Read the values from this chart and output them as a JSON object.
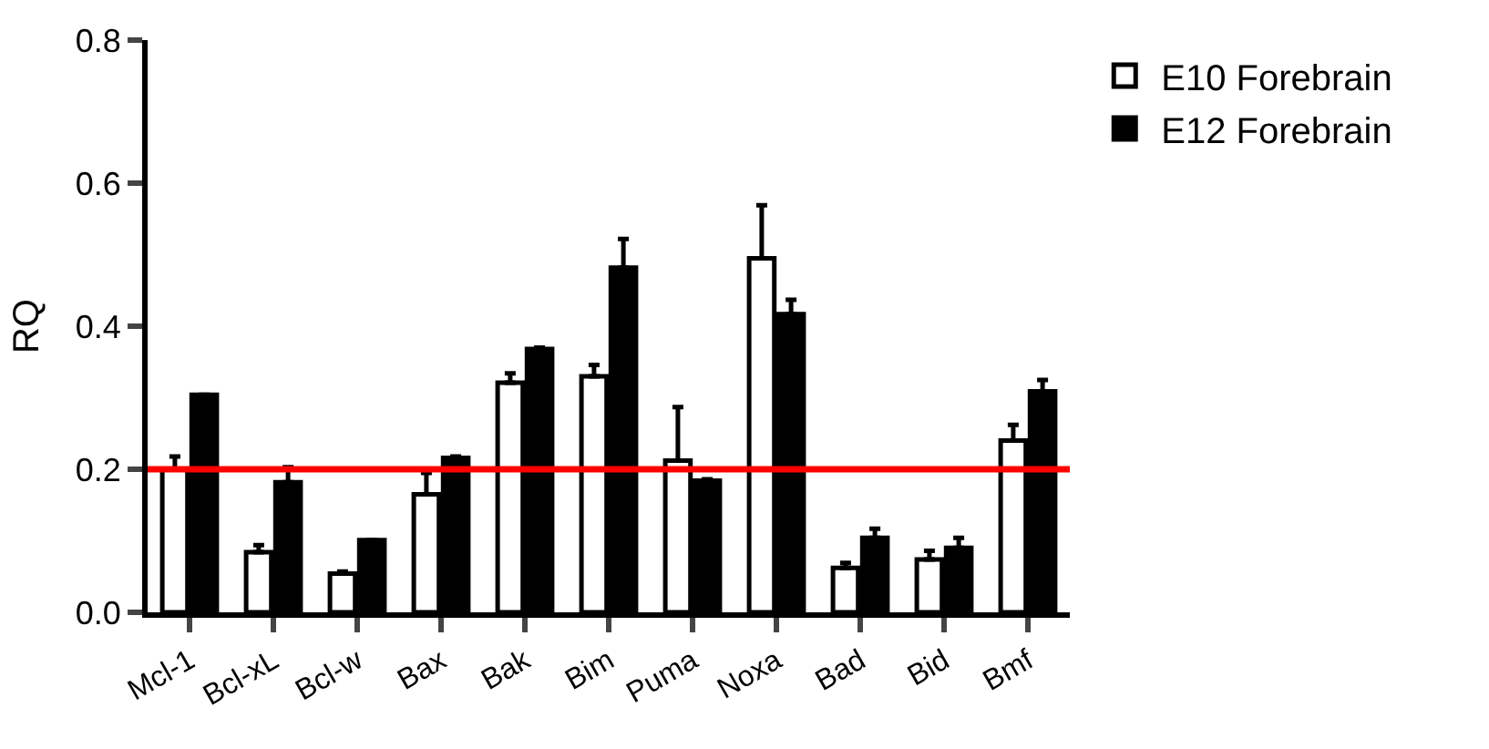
{
  "chart_data": {
    "type": "bar",
    "ylabel": "RQ",
    "categories": [
      "Mcl-1",
      "Bcl-xL",
      "Bcl-w",
      "Bax",
      "Bak",
      "Bim",
      "Puma",
      "Noxa",
      "Bad",
      "Bid",
      "Bmf"
    ],
    "series": [
      {
        "name": "E10 Forebrain",
        "color": "#ffffff",
        "values": [
          0.2,
          0.084,
          0.054,
          0.165,
          0.321,
          0.33,
          0.212,
          0.495,
          0.062,
          0.074,
          0.24
        ],
        "errors": [
          [
            0.2,
            0.218
          ],
          [
            0.084,
            0.094
          ],
          [
            0.054,
            0.057
          ],
          [
            0.165,
            0.195
          ],
          [
            0.321,
            0.334
          ],
          [
            0.33,
            0.346
          ],
          [
            0.212,
            0.287
          ],
          [
            0.495,
            0.569
          ],
          [
            0.062,
            0.069
          ],
          [
            0.074,
            0.086
          ],
          [
            0.24,
            0.262
          ]
        ]
      },
      {
        "name": "E12 Forebrain",
        "color": "#000000",
        "values": [
          0.304,
          0.182,
          0.101,
          0.216,
          0.368,
          0.482,
          0.184,
          0.417,
          0.104,
          0.09,
          0.309
        ],
        "errors": [
          null,
          [
            0.182,
            0.203
          ],
          null,
          [
            0.216,
            0.218
          ],
          [
            0.368,
            0.37
          ],
          [
            0.482,
            0.522
          ],
          [
            0.184,
            0.186
          ],
          [
            0.417,
            0.437
          ],
          [
            0.104,
            0.117
          ],
          [
            0.09,
            0.104
          ],
          [
            0.309,
            0.325
          ]
        ]
      }
    ],
    "ylim": [
      0,
      0.8
    ],
    "yticks": [
      {
        "value": 0,
        "label": "0.0"
      },
      {
        "value": 0.2,
        "label": "0.2"
      },
      {
        "value": 0.4,
        "label": "0.4"
      },
      {
        "value": 0.6,
        "label": "0.6"
      },
      {
        "value": 0.8,
        "label": "0.8"
      }
    ],
    "ref_lines": [
      {
        "axis": "y",
        "value": 0.2,
        "color": "#ff0000"
      }
    ],
    "grid": false,
    "legend": "top right"
  }
}
